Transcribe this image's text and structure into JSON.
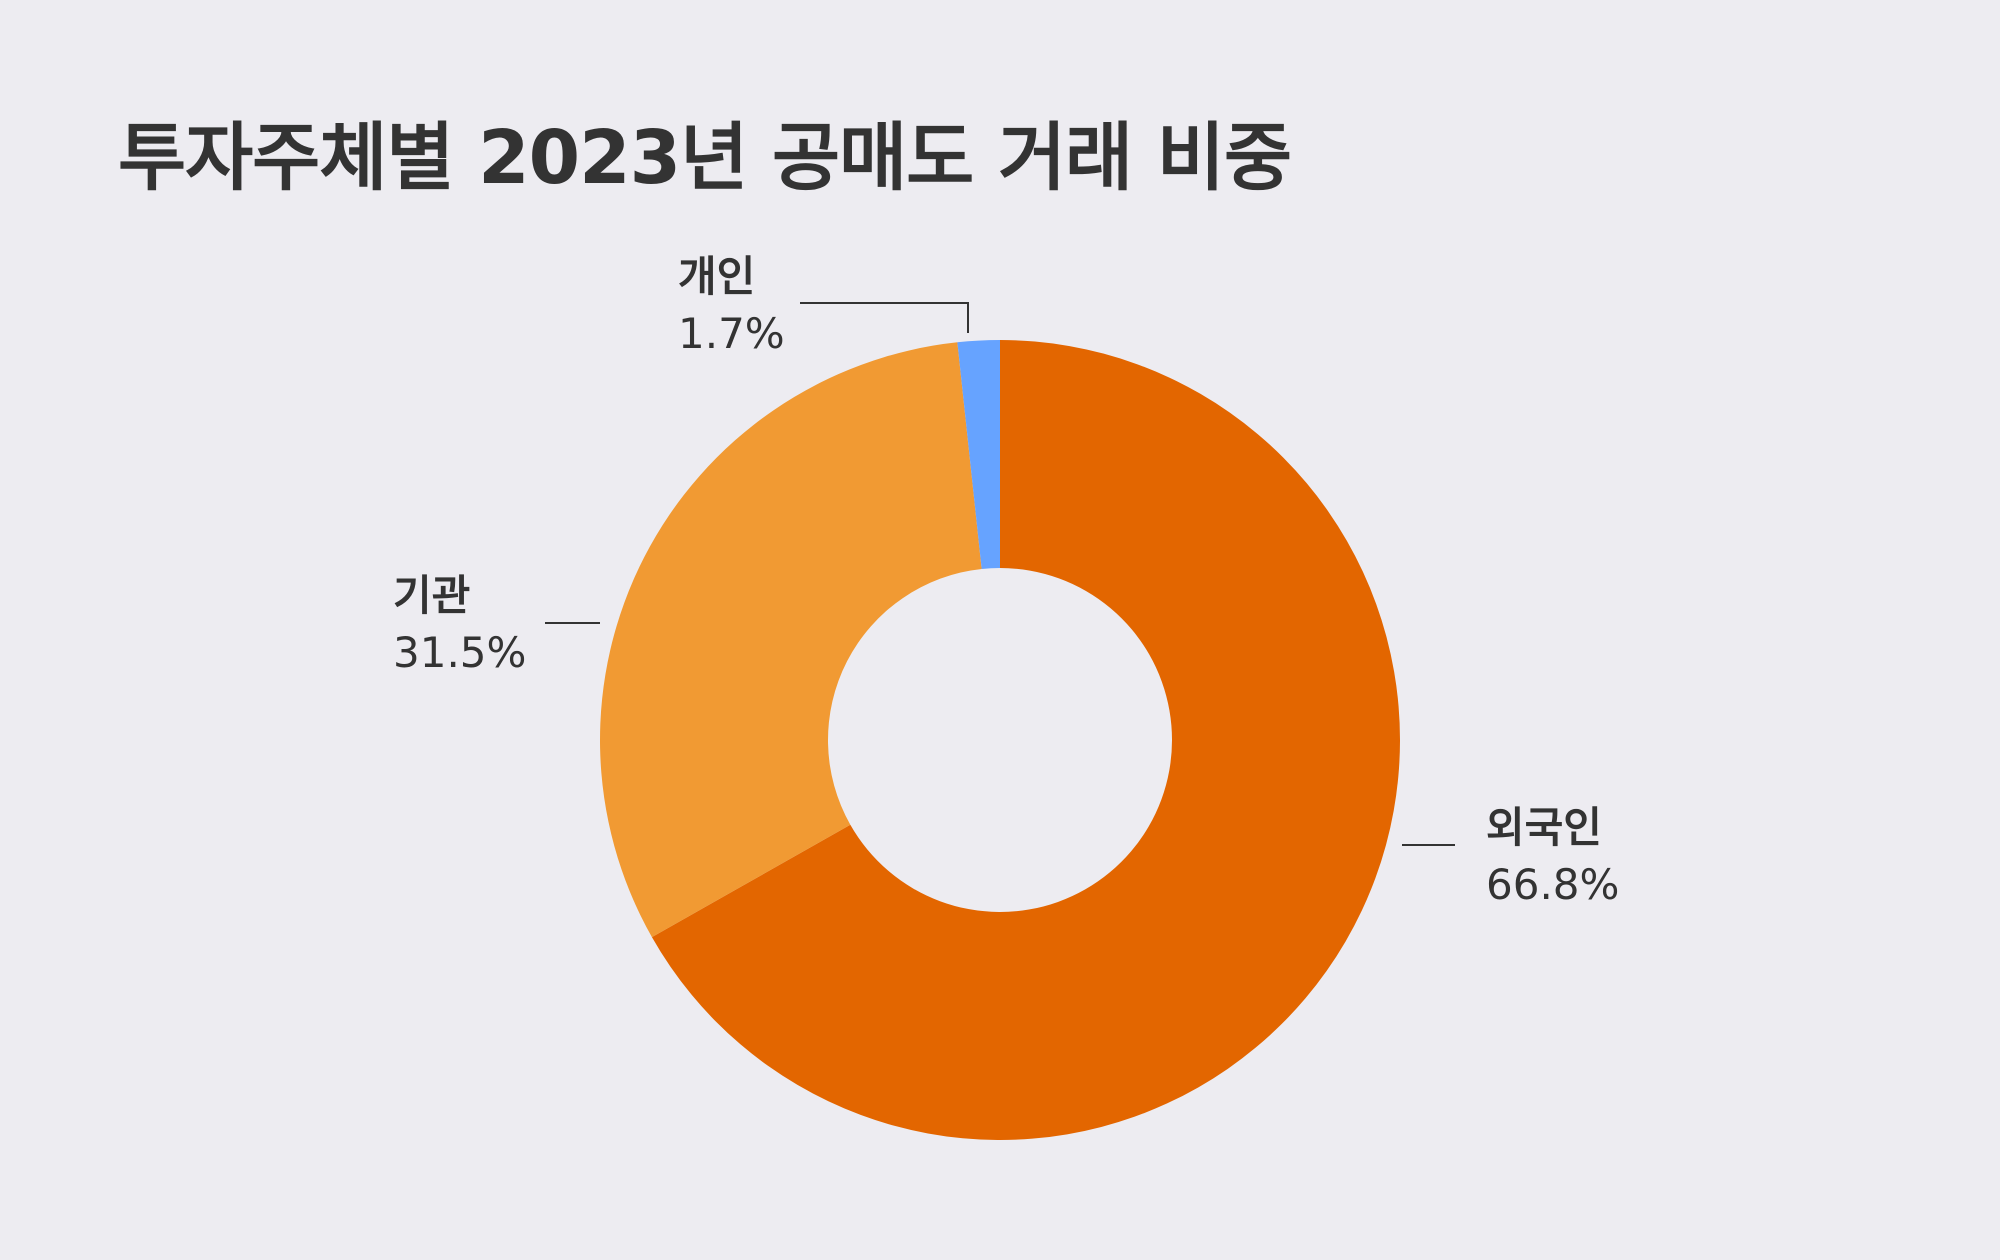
{
  "title": "투자주체별 2023년 공매도 거래 비중",
  "chart_data": {
    "type": "pie",
    "title": "투자주체별 2023년 공매도 거래 비중",
    "donut": true,
    "slices": [
      {
        "label": "외국인",
        "value": 66.8,
        "value_label": "66.8%",
        "color": "#e36600"
      },
      {
        "label": "기관",
        "value": 31.5,
        "value_label": "31.5%",
        "color": "#f19a33"
      },
      {
        "label": "개인",
        "value": 1.7,
        "value_label": "1.7%",
        "color": "#66a3ff"
      }
    ],
    "legend": "none"
  }
}
